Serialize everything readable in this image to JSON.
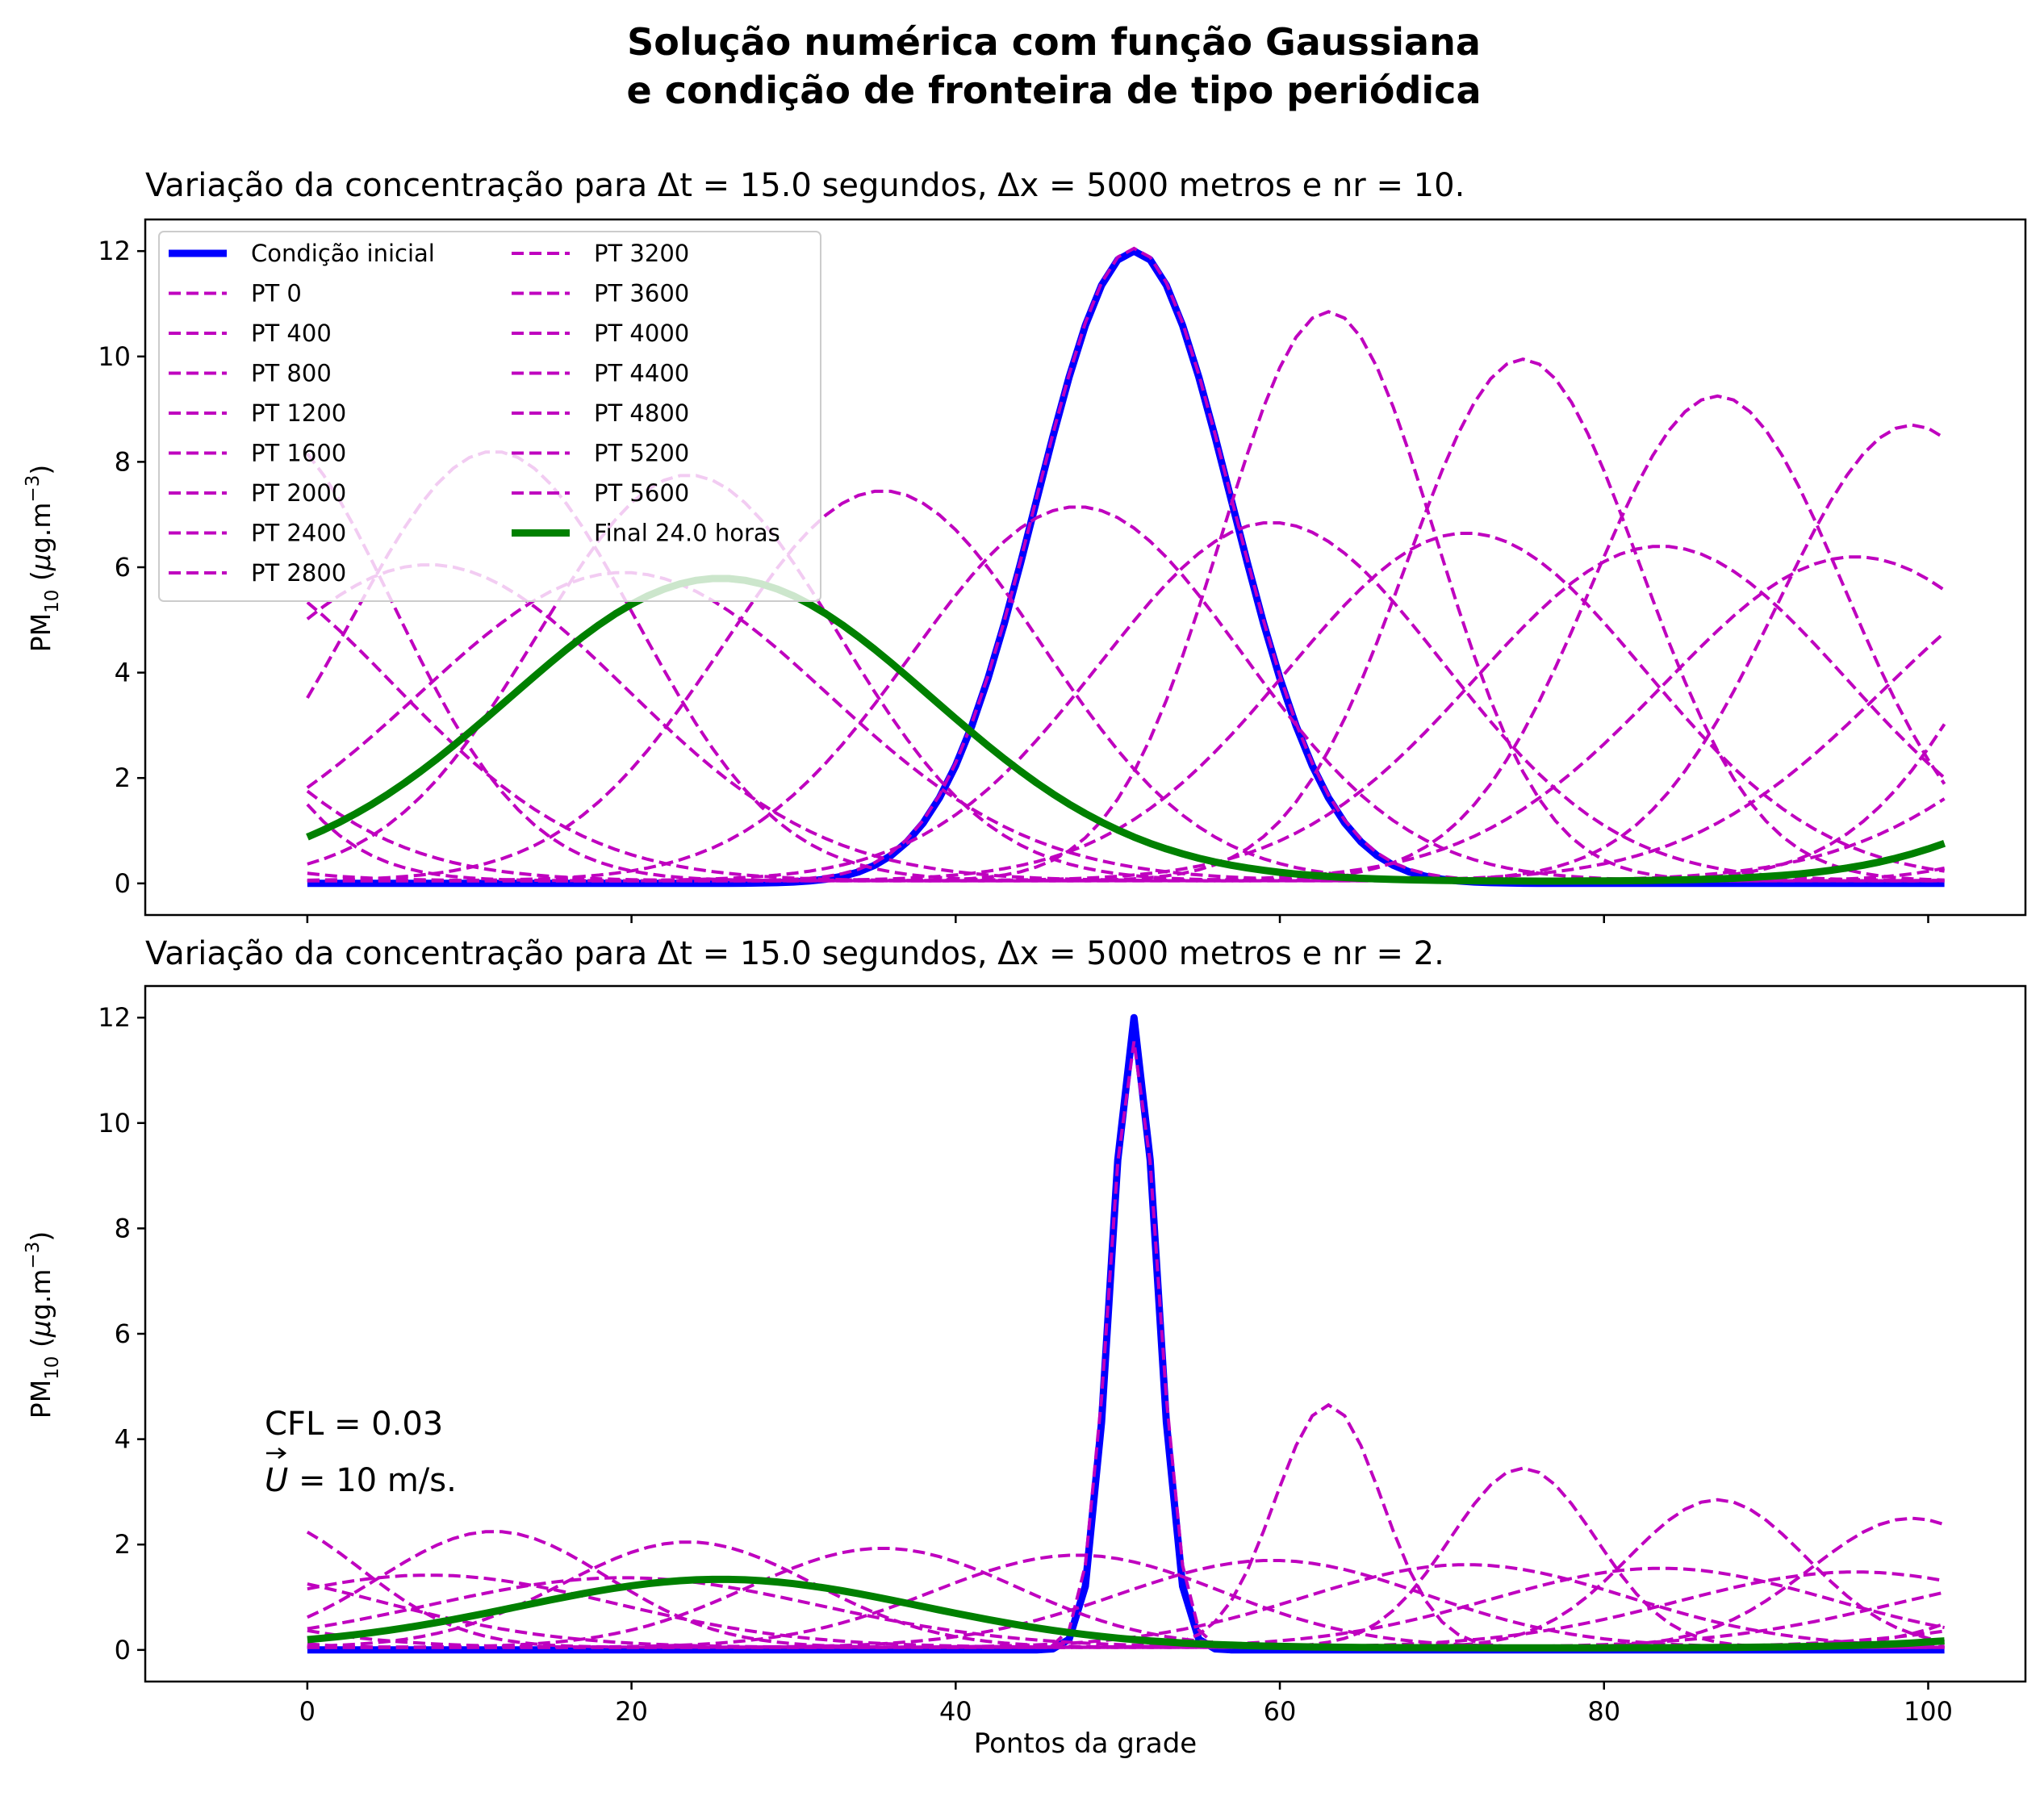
{
  "figure": {
    "title_line1": "Solução numérica com função Gaussiana",
    "title_line2": "e condição de fronteira de tipo periódica",
    "xlabel": "Pontos da grade"
  },
  "chart_data": [
    {
      "type": "line",
      "title": "Variação da concentração para Δt = 15.0 segundos, Δx = 5000 metros e nr = 10.",
      "ylabel": "PM10 (μg.m−3)",
      "xlim": [
        -10,
        106
      ],
      "ylim": [
        -0.6,
        12.6
      ],
      "xticks": [
        0,
        20,
        40,
        60,
        80,
        100
      ],
      "xtick_labels_visible": false,
      "yticks": [
        0,
        2,
        4,
        6,
        8,
        10,
        12
      ],
      "grid": false,
      "legend": {
        "location": "upper-left",
        "columns": 2
      },
      "x": {
        "start": 0,
        "end": 101,
        "step": 1
      },
      "initial_condition": {
        "name": "Condição inicial",
        "shape": "gaussian",
        "amplitude": 12.0,
        "center": 51,
        "sigma": 6.0,
        "color": "#0000ff"
      },
      "series": [
        {
          "name": "PT 0",
          "peak": 12.0,
          "center": 51,
          "sigma": 6.0
        },
        {
          "name": "PT 400",
          "peak": 10.8,
          "center": 63,
          "sigma": 6.6
        },
        {
          "name": "PT 800",
          "peak": 9.9,
          "center": 75,
          "sigma": 7.2
        },
        {
          "name": "PT 1200",
          "peak": 9.2,
          "center": 87,
          "sigma": 7.8
        },
        {
          "name": "PT 1600",
          "peak": 8.65,
          "center": 99,
          "sigma": 8.3
        },
        {
          "name": "PT 2000",
          "peak": 8.15,
          "center": 11.5,
          "sigma": 8.8
        },
        {
          "name": "PT 2400",
          "peak": 7.7,
          "center": 23.5,
          "sigma": 9.3
        },
        {
          "name": "PT 2800",
          "peak": 7.4,
          "center": 35.5,
          "sigma": 9.8
        },
        {
          "name": "PT 3200",
          "peak": 7.1,
          "center": 47.5,
          "sigma": 10.2
        },
        {
          "name": "PT 3600",
          "peak": 6.8,
          "center": 59.5,
          "sigma": 10.6
        },
        {
          "name": "PT 4000",
          "peak": 6.6,
          "center": 71.5,
          "sigma": 11.0
        },
        {
          "name": "PT 4400",
          "peak": 6.35,
          "center": 83.5,
          "sigma": 11.4
        },
        {
          "name": "PT 4800",
          "peak": 6.15,
          "center": 95.5,
          "sigma": 11.8
        },
        {
          "name": "PT 5200",
          "peak": 6.0,
          "center": 7.5,
          "sigma": 12.2
        },
        {
          "name": "PT 5600",
          "peak": 5.85,
          "center": 19.5,
          "sigma": 12.6
        }
      ],
      "series_color": "#bf00bf",
      "final": {
        "name": "Final 24.0 horas",
        "peak": 5.75,
        "center": 25.5,
        "sigma": 13.0,
        "color": "#008000"
      }
    },
    {
      "type": "line",
      "title": "Variação da concentração para Δt = 15.0 segundos, Δx = 5000 metros e nr = 2.",
      "ylabel": "PM10 (μg.m−3)",
      "xlim": [
        -10,
        106
      ],
      "ylim": [
        -0.6,
        12.6
      ],
      "xticks": [
        0,
        20,
        40,
        60,
        80,
        100
      ],
      "yticks": [
        0,
        2,
        4,
        6,
        8,
        10,
        12
      ],
      "grid": false,
      "annotation": {
        "line1": "CFL = 0.03",
        "line2_prefix": "U",
        "line2_suffix": " = 10 m/s."
      },
      "x": {
        "start": 0,
        "end": 101,
        "step": 1
      },
      "initial_condition": {
        "name": "Condição inicial",
        "shape": "gaussian",
        "amplitude": 12.0,
        "center": 51,
        "sigma": 1.4,
        "color": "#0000ff"
      },
      "series": [
        {
          "name": "PT 0",
          "peak": 11.5,
          "center": 51,
          "sigma": 1.5
        },
        {
          "name": "PT 400",
          "peak": 4.6,
          "center": 63,
          "sigma": 3.3
        },
        {
          "name": "PT 800",
          "peak": 3.4,
          "center": 75,
          "sigma": 4.5
        },
        {
          "name": "PT 1200",
          "peak": 2.8,
          "center": 87,
          "sigma": 5.5
        },
        {
          "name": "PT 1600",
          "peak": 2.45,
          "center": 99,
          "sigma": 6.3
        },
        {
          "name": "PT 2000",
          "peak": 2.2,
          "center": 11.5,
          "sigma": 7.0
        },
        {
          "name": "PT 2400",
          "peak": 2.0,
          "center": 23.5,
          "sigma": 7.7
        },
        {
          "name": "PT 2800",
          "peak": 1.88,
          "center": 35.5,
          "sigma": 8.3
        },
        {
          "name": "PT 3200",
          "peak": 1.75,
          "center": 47.5,
          "sigma": 8.9
        },
        {
          "name": "PT 3600",
          "peak": 1.65,
          "center": 59.5,
          "sigma": 9.5
        },
        {
          "name": "PT 4000",
          "peak": 1.57,
          "center": 71.5,
          "sigma": 10.0
        },
        {
          "name": "PT 4400",
          "peak": 1.5,
          "center": 83.5,
          "sigma": 10.5
        },
        {
          "name": "PT 4800",
          "peak": 1.43,
          "center": 95.5,
          "sigma": 11.0
        },
        {
          "name": "PT 5200",
          "peak": 1.37,
          "center": 7.5,
          "sigma": 11.5
        },
        {
          "name": "PT 5600",
          "peak": 1.32,
          "center": 19.5,
          "sigma": 12.0
        }
      ],
      "series_color": "#bf00bf",
      "final": {
        "name": "Final 24.0 horas",
        "peak": 1.3,
        "center": 25.5,
        "sigma": 12.4,
        "color": "#008000"
      }
    }
  ]
}
